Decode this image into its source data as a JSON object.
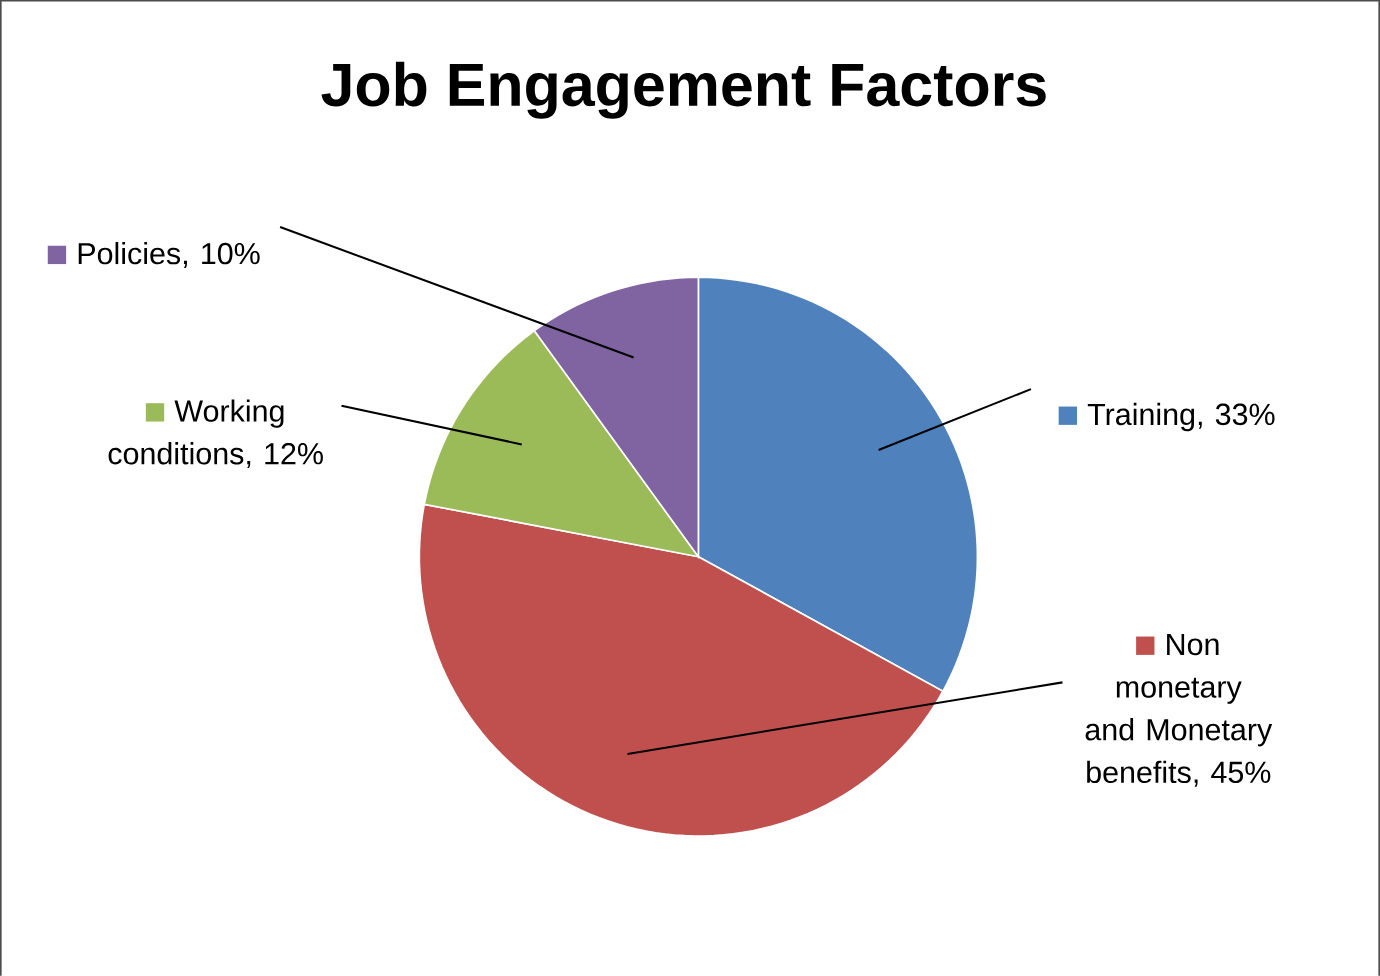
{
  "chart_data": {
    "type": "pie",
    "title": "Job Engagement Factors",
    "categories": [
      "Training",
      "Non monetary and Monetary benefits",
      "Working conditions",
      "Policies"
    ],
    "values": [
      33,
      45,
      12,
      10
    ],
    "value_labels": [
      ", 33%",
      ", 45%",
      ", 12%",
      ", 10%"
    ],
    "legend": "top left",
    "colors": [
      "#4f81bd",
      "#c0504d",
      "#9bbb59",
      "#8064a2"
    ]
  }
}
